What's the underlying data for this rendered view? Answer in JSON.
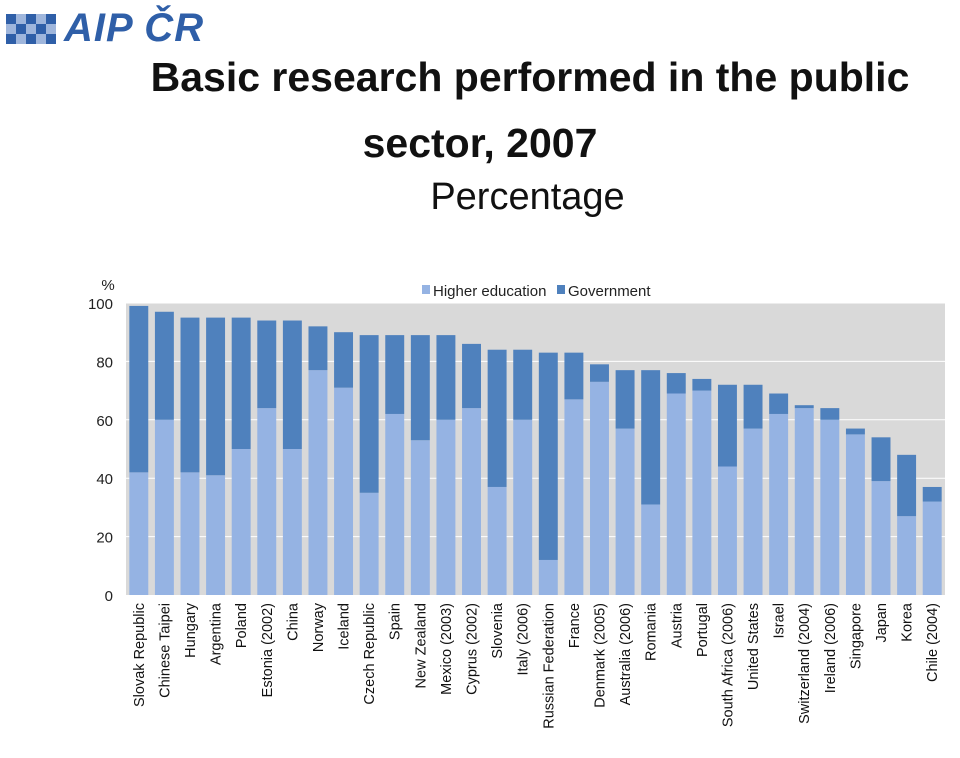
{
  "logo": {
    "text": "AIP ČR"
  },
  "header": {
    "title_line1": "Basic research performed in the public",
    "title_line2": "sector, 2007",
    "subtitle": "Percentage"
  },
  "chart_data": {
    "type": "bar",
    "stacked": true,
    "y_unit_label": "%",
    "ylim": [
      0,
      100
    ],
    "yticks": [
      0,
      20,
      40,
      60,
      80,
      100
    ],
    "grid": true,
    "legend_placement": "top-center",
    "categories": [
      "Slovak Republic",
      "Chinese Taipei",
      "Hungary",
      "Argentina",
      "Poland",
      "Estonia (2002)",
      "China",
      "Norway",
      "Iceland",
      "Czech Republic",
      "Spain",
      "New Zealand",
      "Mexico (2003)",
      "Cyprus (2002)",
      "Slovenia",
      "Italy (2006)",
      "Russian Federation",
      "France",
      "Denmark (2005)",
      "Australia (2006)",
      "Romania",
      "Austria",
      "Portugal",
      "South Africa (2006)",
      "United States",
      "Israel",
      "Switzerland (2004)",
      "Ireland (2006)",
      "Singapore",
      "Japan",
      "Korea",
      "Chile (2004)"
    ],
    "series": [
      {
        "name": "Higher education",
        "color": "#95b3e3",
        "values": [
          42,
          60,
          42,
          41,
          50,
          64,
          50,
          77,
          71,
          35,
          62,
          53,
          60,
          64,
          37,
          60,
          12,
          67,
          73,
          57,
          31,
          69,
          70,
          44,
          57,
          62,
          64,
          60,
          55,
          39,
          27,
          32
        ]
      },
      {
        "name": "Government",
        "color": "#4f81bd",
        "values": [
          57,
          37,
          53,
          54,
          45,
          30,
          44,
          15,
          19,
          54,
          27,
          36,
          29,
          22,
          47,
          24,
          71,
          16,
          6,
          20,
          46,
          7,
          4,
          28,
          15,
          7,
          1,
          4,
          2,
          15,
          21,
          5
        ]
      }
    ]
  }
}
